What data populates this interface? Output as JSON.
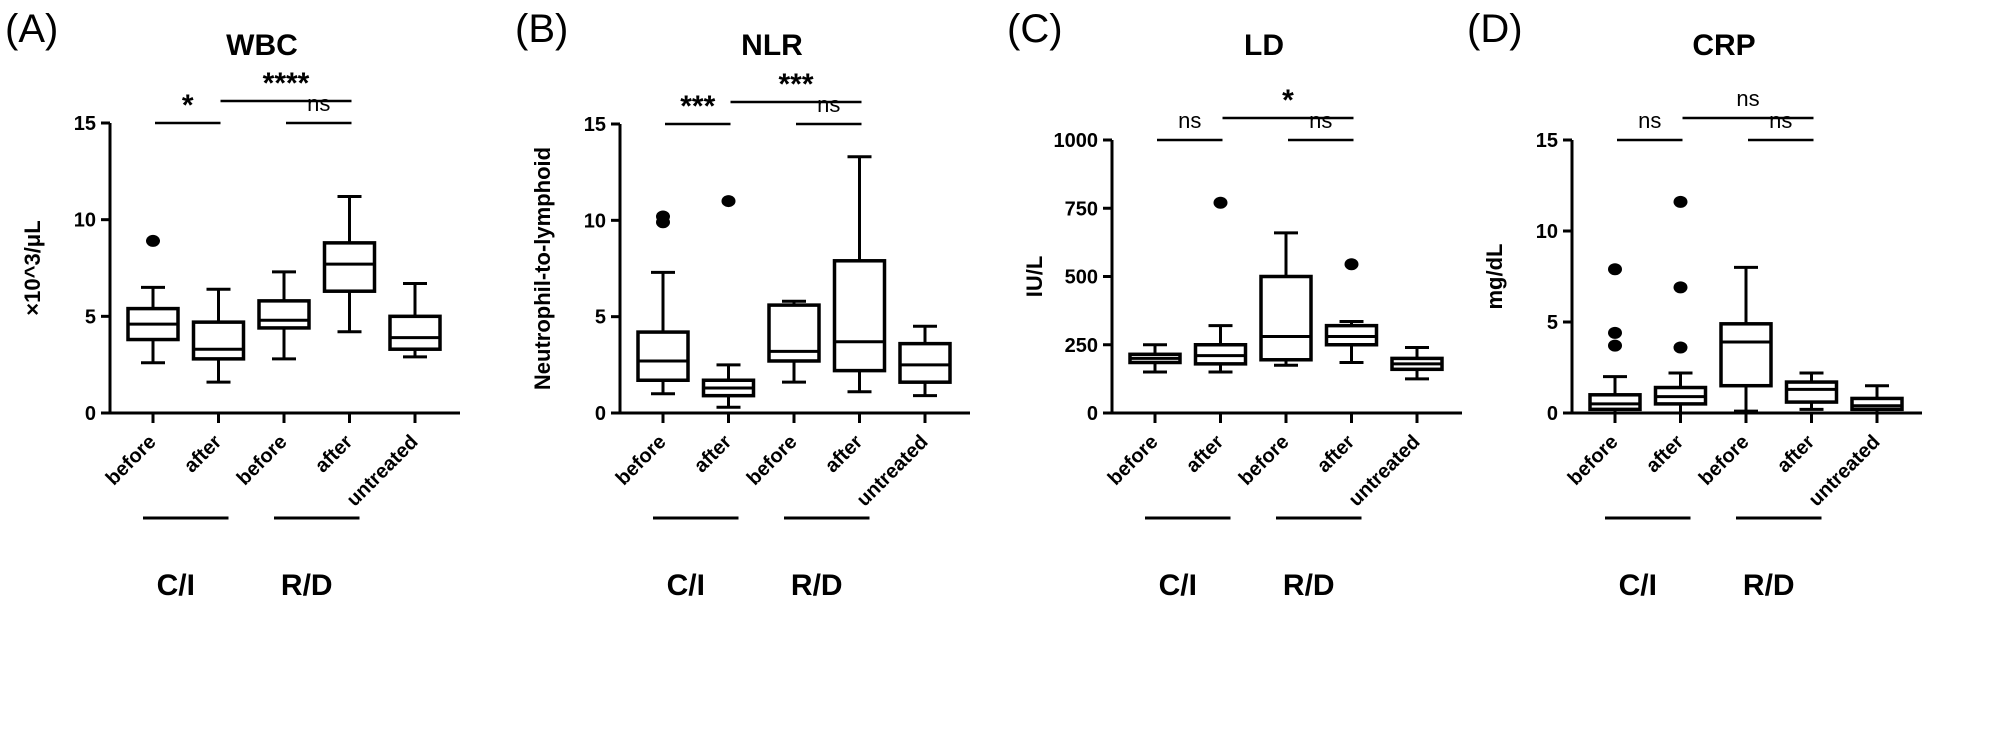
{
  "chart_data": [
    {
      "type": "box",
      "panel_label": "(A)",
      "title": "WBC",
      "ylabel": "×10^3/μL",
      "ylim": [
        0,
        15
      ],
      "yticks": [
        "0",
        "5",
        "10",
        "15"
      ],
      "ytick_values": [
        0,
        5,
        10,
        15
      ],
      "categories": [
        "before",
        "after",
        "before",
        "after",
        "untreated"
      ],
      "groups": [
        {
          "label": "C/I",
          "categories": [
            0,
            1
          ]
        },
        {
          "label": "R/D",
          "categories": [
            2,
            3
          ]
        }
      ],
      "boxes": [
        {
          "min": 2.6,
          "q1": 3.8,
          "median": 4.6,
          "q3": 5.4,
          "max": 6.5,
          "outliers": [
            8.9
          ]
        },
        {
          "min": 1.6,
          "q1": 2.8,
          "median": 3.3,
          "q3": 4.7,
          "max": 6.4,
          "outliers": []
        },
        {
          "min": 2.8,
          "q1": 4.4,
          "median": 4.8,
          "q3": 5.8,
          "max": 7.3,
          "outliers": []
        },
        {
          "min": 4.2,
          "q1": 6.3,
          "median": 7.7,
          "q3": 8.8,
          "max": 11.2,
          "outliers": []
        },
        {
          "min": 2.9,
          "q1": 3.3,
          "median": 3.9,
          "q3": 5.0,
          "max": 6.7,
          "outliers": []
        }
      ],
      "significance": [
        {
          "from": 0,
          "to": 1,
          "label": "*"
        },
        {
          "from": 1,
          "to": 3,
          "label": "****"
        },
        {
          "from": 2,
          "to": 3,
          "label": "ns"
        }
      ]
    },
    {
      "type": "box",
      "panel_label": "(B)",
      "title": "NLR",
      "ylabel": "Neutrophil-to-lymphoid",
      "ylim": [
        0,
        15
      ],
      "yticks": [
        "0",
        "5",
        "10",
        "15"
      ],
      "ytick_values": [
        0,
        5,
        10,
        15
      ],
      "categories": [
        "before",
        "after",
        "before",
        "after",
        "untreated"
      ],
      "groups": [
        {
          "label": "C/I",
          "categories": [
            0,
            1
          ]
        },
        {
          "label": "R/D",
          "categories": [
            2,
            3
          ]
        }
      ],
      "boxes": [
        {
          "min": 1.0,
          "q1": 1.7,
          "median": 2.7,
          "q3": 4.2,
          "max": 7.3,
          "outliers": [
            9.9,
            10.2
          ]
        },
        {
          "min": 0.3,
          "q1": 0.9,
          "median": 1.3,
          "q3": 1.7,
          "max": 2.5,
          "outliers": [
            11.0
          ]
        },
        {
          "min": 1.6,
          "q1": 2.7,
          "median": 3.2,
          "q3": 5.6,
          "max": 5.8,
          "outliers": []
        },
        {
          "min": 1.1,
          "q1": 2.2,
          "median": 3.7,
          "q3": 7.9,
          "max": 13.3,
          "outliers": []
        },
        {
          "min": 0.9,
          "q1": 1.6,
          "median": 2.5,
          "q3": 3.6,
          "max": 4.5,
          "outliers": []
        }
      ],
      "significance": [
        {
          "from": 0,
          "to": 1,
          "label": "***"
        },
        {
          "from": 1,
          "to": 3,
          "label": "***"
        },
        {
          "from": 2,
          "to": 3,
          "label": "ns"
        }
      ]
    },
    {
      "type": "box",
      "panel_label": "(C)",
      "title": "LD",
      "ylabel": "IU/L",
      "ylim": [
        0,
        1000
      ],
      "yticks": [
        "0",
        "250",
        "500",
        "750",
        "1000"
      ],
      "ytick_values": [
        0,
        250,
        500,
        750,
        1000
      ],
      "categories": [
        "before",
        "after",
        "before",
        "after",
        "untreated"
      ],
      "groups": [
        {
          "label": "C/I",
          "categories": [
            0,
            1
          ]
        },
        {
          "label": "R/D",
          "categories": [
            2,
            3
          ]
        }
      ],
      "boxes": [
        {
          "min": 150,
          "q1": 185,
          "median": 200,
          "q3": 215,
          "max": 250,
          "outliers": []
        },
        {
          "min": 150,
          "q1": 180,
          "median": 210,
          "q3": 250,
          "max": 320,
          "outliers": [
            770
          ]
        },
        {
          "min": 175,
          "q1": 195,
          "median": 280,
          "q3": 500,
          "max": 660,
          "outliers": []
        },
        {
          "min": 185,
          "q1": 250,
          "median": 280,
          "q3": 320,
          "max": 335,
          "outliers": [
            545
          ]
        },
        {
          "min": 125,
          "q1": 160,
          "median": 180,
          "q3": 200,
          "max": 240,
          "outliers": []
        }
      ],
      "significance": [
        {
          "from": 0,
          "to": 1,
          "label": "ns"
        },
        {
          "from": 1,
          "to": 3,
          "label": "*"
        },
        {
          "from": 2,
          "to": 3,
          "label": "ns"
        }
      ]
    },
    {
      "type": "box",
      "panel_label": "(D)",
      "title": "CRP",
      "ylabel": "mg/dL",
      "ylim": [
        0,
        15
      ],
      "yticks": [
        "0",
        "5",
        "10",
        "15"
      ],
      "ytick_values": [
        0,
        5,
        10,
        15
      ],
      "categories": [
        "before",
        "after",
        "before",
        "after",
        "untreated"
      ],
      "groups": [
        {
          "label": "C/I",
          "categories": [
            0,
            1
          ]
        },
        {
          "label": "R/D",
          "categories": [
            2,
            3
          ]
        }
      ],
      "boxes": [
        {
          "min": 0.0,
          "q1": 0.2,
          "median": 0.5,
          "q3": 1.0,
          "max": 2.0,
          "outliers": [
            3.7,
            4.4,
            7.9
          ]
        },
        {
          "min": 0.0,
          "q1": 0.5,
          "median": 0.9,
          "q3": 1.4,
          "max": 2.2,
          "outliers": [
            3.6,
            6.9,
            11.6
          ]
        },
        {
          "min": 0.1,
          "q1": 1.5,
          "median": 3.9,
          "q3": 4.9,
          "max": 8.0,
          "outliers": []
        },
        {
          "min": 0.2,
          "q1": 0.6,
          "median": 1.3,
          "q3": 1.7,
          "max": 2.2,
          "outliers": []
        },
        {
          "min": 0.0,
          "q1": 0.2,
          "median": 0.4,
          "q3": 0.8,
          "max": 1.5,
          "outliers": []
        }
      ],
      "significance": [
        {
          "from": 0,
          "to": 1,
          "label": "ns"
        },
        {
          "from": 1,
          "to": 3,
          "label": "ns"
        },
        {
          "from": 2,
          "to": 3,
          "label": "ns"
        }
      ]
    }
  ]
}
